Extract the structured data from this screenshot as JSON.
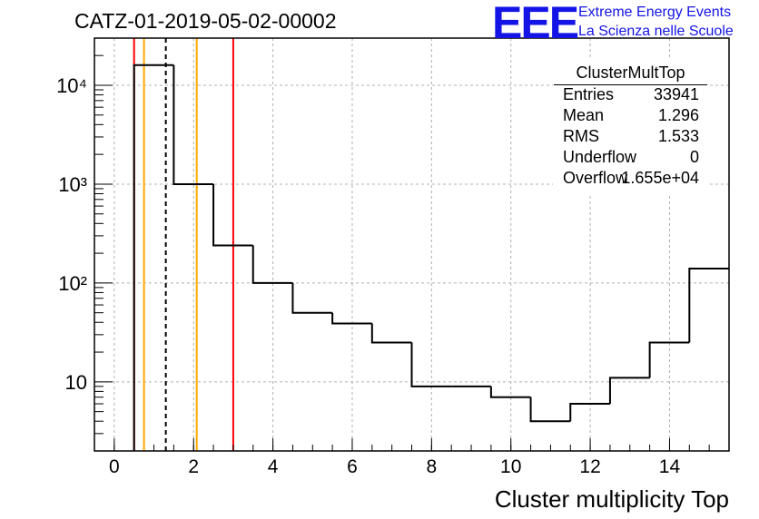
{
  "title": "CATZ-01-2019-05-02-00002",
  "logo": {
    "mark": "EEE",
    "line1": "Extreme Energy Events",
    "line2": "La Scienza nelle Scuole",
    "color": "#1414e6"
  },
  "stats": {
    "title": "ClusterMultTop",
    "rows": [
      {
        "key": "Entries",
        "value": "33941"
      },
      {
        "key": "Mean",
        "value": "1.296"
      },
      {
        "key": "RMS",
        "value": "1.533"
      },
      {
        "key": "Underflow",
        "value": "0"
      },
      {
        "key": "Overflow",
        "value": "1.655e+04"
      }
    ]
  },
  "chart_data": {
    "type": "histogram",
    "xlabel": "Cluster multiplicity Top",
    "ylabel": "",
    "xlim": [
      -0.5,
      15.5
    ],
    "ylim": [
      2,
      30000
    ],
    "yscale": "log",
    "grid": true,
    "xticks": [
      0,
      2,
      4,
      6,
      8,
      10,
      12,
      14
    ],
    "yticks": [
      {
        "value": 10,
        "label": "10"
      },
      {
        "value": 100,
        "label": "10²"
      },
      {
        "value": 1000,
        "label": "10³"
      },
      {
        "value": 10000,
        "label": "10⁴"
      }
    ],
    "bin_edges": [
      0.5,
      1.5,
      2.5,
      3.5,
      4.5,
      5.5,
      6.5,
      7.5,
      8.5,
      9.5,
      10.5,
      11.5,
      12.5,
      13.5,
      14.5,
      15.5
    ],
    "bin_values": [
      16000,
      1000,
      240,
      100,
      50,
      39,
      25,
      9,
      9,
      7,
      4,
      6,
      11,
      25,
      140
    ],
    "vlines": [
      {
        "x": 0.5,
        "color": "#ff0000",
        "style": "solid"
      },
      {
        "x": 0.75,
        "color": "#ffaa00",
        "style": "solid"
      },
      {
        "x": 1.3,
        "color": "#000000",
        "style": "dashed"
      },
      {
        "x": 2.08,
        "color": "#ffaa00",
        "style": "solid"
      },
      {
        "x": 3.0,
        "color": "#ff0000",
        "style": "solid"
      }
    ]
  }
}
